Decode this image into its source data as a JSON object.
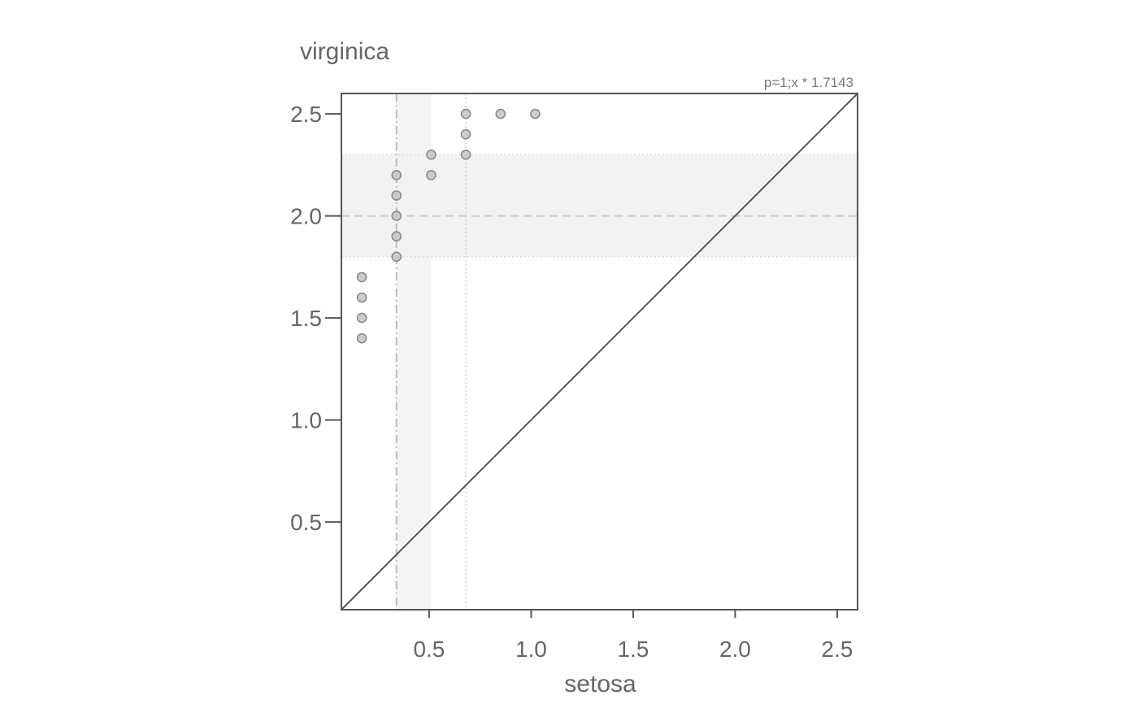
{
  "chart_data": {
    "type": "scatter",
    "xlabel": "setosa",
    "ylabel": "virginica",
    "annotation": "p=1;x *  1.7143",
    "xlim": [
      0.07,
      2.6
    ],
    "ylim": [
      0.07,
      2.6
    ],
    "xticks": [
      0.5,
      1.0,
      1.5,
      2.0,
      2.5
    ],
    "yticks": [
      0.5,
      1.0,
      1.5,
      2.0,
      2.5
    ],
    "xtick_labels": [
      "0.5",
      "1.0",
      "1.5",
      "2.0",
      "2.5"
    ],
    "ytick_labels": [
      "0.5",
      "1.0",
      "1.5",
      "2.0",
      "2.5"
    ],
    "grid": false,
    "reference_line": {
      "slope": 1,
      "intercept": 0
    },
    "x_median": 0.34,
    "x_iqr": [
      0.34,
      0.51
    ],
    "x_q3_dotted": 0.68,
    "y_median": 2.0,
    "y_iqr": [
      1.8,
      2.3
    ],
    "points": [
      {
        "x": 0.17,
        "y": 1.4
      },
      {
        "x": 0.17,
        "y": 1.5
      },
      {
        "x": 0.17,
        "y": 1.6
      },
      {
        "x": 0.17,
        "y": 1.7
      },
      {
        "x": 0.34,
        "y": 1.8
      },
      {
        "x": 0.34,
        "y": 1.9
      },
      {
        "x": 0.34,
        "y": 2.0
      },
      {
        "x": 0.34,
        "y": 2.1
      },
      {
        "x": 0.34,
        "y": 2.2
      },
      {
        "x": 0.51,
        "y": 2.2
      },
      {
        "x": 0.51,
        "y": 2.3
      },
      {
        "x": 0.68,
        "y": 2.3
      },
      {
        "x": 0.68,
        "y": 2.4
      },
      {
        "x": 0.68,
        "y": 2.5
      },
      {
        "x": 0.85,
        "y": 2.5
      },
      {
        "x": 1.02,
        "y": 2.5
      }
    ],
    "colors": {
      "axis": "#555555",
      "text": "#666666",
      "band": "#f2f2f2",
      "point_fill": "#c8c8c8",
      "point_stroke": "#8a8a8a"
    }
  }
}
